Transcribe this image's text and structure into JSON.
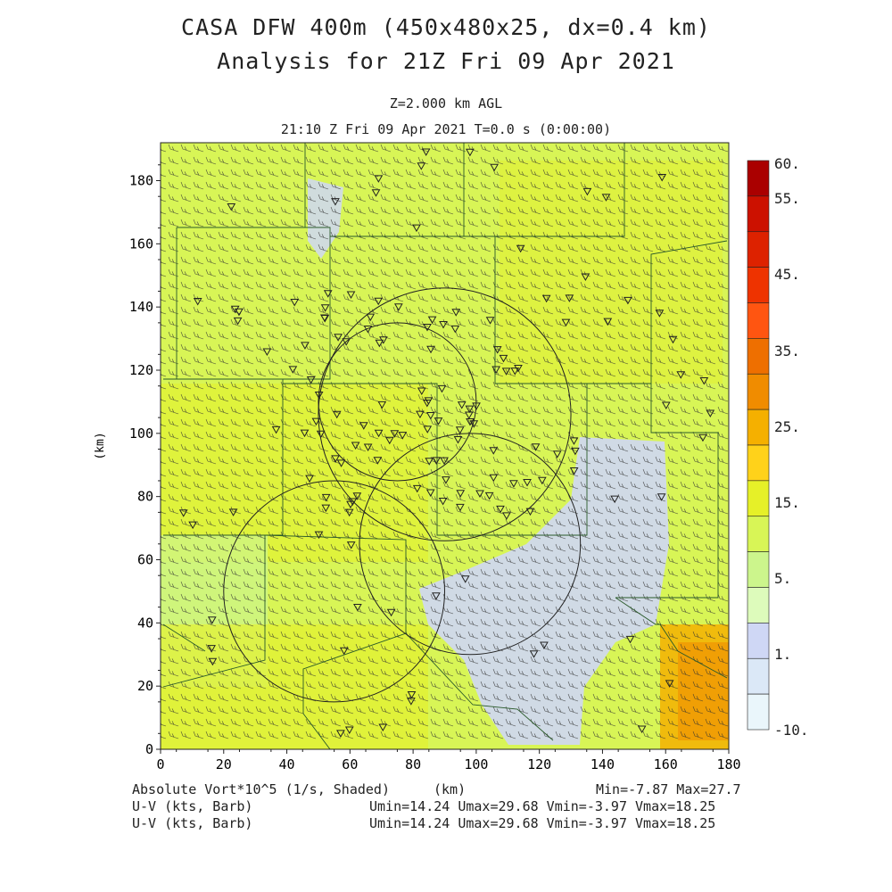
{
  "header": {
    "title_line1": "CASA DFW 400m (450x480x25, dx=0.4 km)",
    "title_line2": "Analysis for 21Z Fri 09 Apr 2021",
    "level": "Z=2.000 km AGL",
    "valid_time": "21:10 Z Fri 09 Apr 2021    T=0.0 s (0:00:00)"
  },
  "footer": {
    "field1": "Absolute Vort*10^5 (1/s, Shaded)",
    "xunit": "(km)",
    "minmax": "Min=-7.87 Max=27.7",
    "field2": "U-V (kts, Barb)",
    "field2_stats": "Umin=14.24 Umax=29.68 Vmin=-3.97 Vmax=18.25",
    "field3": "U-V (kts, Barb)",
    "field3_stats": "Umin=14.24 Umax=29.68 Vmin=-3.97 Vmax=18.25"
  },
  "colorbar": {
    "labels": [
      "60.",
      "55.",
      "45.",
      "35.",
      "25.",
      "15.",
      "5.",
      "1.",
      "-10."
    ],
    "colors": [
      "#aa0000",
      "#cc1100",
      "#dd2200",
      "#ee3300",
      "#ff5511",
      "#ee6f00",
      "#f08c00",
      "#f5b000",
      "#ffd21a",
      "#e6f028",
      "#d8f556",
      "#ccf58c",
      "#ddfbbb",
      "#cfd7f5",
      "#dbe8f7",
      "#eaf6fb"
    ]
  },
  "chart_data": {
    "type": "heatmap",
    "title": "CASA DFW 400m (450x480x25, dx=0.4 km)",
    "xlabel": "(km)",
    "ylabel": "(km)",
    "xlim": [
      0,
      180
    ],
    "ylim": [
      0,
      192
    ],
    "xticks": [
      0,
      20,
      40,
      60,
      80,
      100,
      120,
      140,
      160,
      180
    ],
    "yticks": [
      0,
      20,
      40,
      60,
      80,
      100,
      120,
      140,
      160,
      180
    ],
    "field": "Absolute Vort*10^5 (1/s)",
    "field_min": -7.87,
    "field_max": 27.7,
    "contour_levels": [
      -10,
      1,
      5,
      15,
      25,
      35,
      45,
      55,
      60
    ],
    "wind_barbs": {
      "units": "kts",
      "umin": 14.24,
      "umax": 29.68,
      "vmin": -3.97,
      "vmax": 18.25,
      "typical_direction": "southwest"
    },
    "radar_rings": [
      {
        "center": [
          90,
          106
        ],
        "radius_km": 40
      },
      {
        "center": [
          75,
          110
        ],
        "radius_km": 25
      },
      {
        "center": [
          98,
          65
        ],
        "radius_km": 35
      },
      {
        "center": [
          55,
          50
        ],
        "radius_km": 35
      }
    ],
    "shading_regions": [
      {
        "name": "low vorticity band",
        "level": "1 to 5",
        "color": "#cfd7f5"
      },
      {
        "name": "southeast maximum",
        "level": "25 to 27.7",
        "color": "#f5b000"
      },
      {
        "name": "background",
        "level": "5 to 15",
        "color": "#d8f556"
      }
    ]
  }
}
